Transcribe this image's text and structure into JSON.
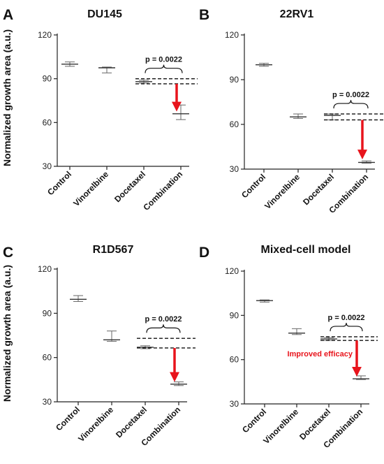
{
  "figure": {
    "ylabel": "Normalized growth area (a.u.)"
  },
  "chart_data": [
    {
      "panel_letter": "A",
      "title": "DU145",
      "type": "scatter",
      "categories": [
        "Control",
        "Vinorelbine",
        "Docetaxel",
        "Combination"
      ],
      "series": [
        {
          "mean": [
            100,
            97.5,
            88,
            66
          ],
          "error_low": [
            98.5,
            94,
            87,
            62
          ],
          "error_high": [
            101.5,
            98,
            89,
            72
          ]
        }
      ],
      "ylim": [
        30,
        120
      ],
      "yticks": [
        30,
        60,
        90,
        120
      ],
      "grid": false,
      "annotation": {
        "text": "p = 0.0022",
        "from": "Docetaxel",
        "to": "Combination",
        "dashed_levels": [
          90,
          86.5
        ]
      },
      "arrow": {
        "category": "Combination",
        "from": 86.5,
        "to": 68,
        "color": "#e8141c"
      },
      "note": ""
    },
    {
      "panel_letter": "B",
      "title": "22RV1",
      "type": "scatter",
      "categories": [
        "Control",
        "Vinorelbine",
        "Docetaxel",
        "Combination"
      ],
      "series": [
        {
          "mean": [
            100,
            65,
            66,
            34.5
          ],
          "error_low": [
            99,
            64,
            63,
            34
          ],
          "error_high": [
            101,
            67,
            67,
            35.5
          ]
        }
      ],
      "ylim": [
        30,
        120
      ],
      "yticks": [
        30,
        60,
        90,
        120
      ],
      "grid": false,
      "annotation": {
        "text": "p = 0.0022",
        "from": "Docetaxel",
        "to": "Combination",
        "dashed_levels": [
          67,
          63
        ]
      },
      "arrow": {
        "category": "Combination",
        "from": 63,
        "to": 37,
        "color": "#e8141c"
      },
      "note": ""
    },
    {
      "panel_letter": "C",
      "title": "R1D567",
      "type": "scatter",
      "categories": [
        "Control",
        "Vinorelbine",
        "Docetaxel",
        "Combination"
      ],
      "series": [
        {
          "mean": [
            99.5,
            72,
            67,
            42
          ],
          "error_low": [
            98,
            71,
            66,
            41
          ],
          "error_high": [
            102,
            78,
            68,
            43.5
          ]
        }
      ],
      "ylim": [
        30,
        120
      ],
      "yticks": [
        30,
        60,
        90,
        120
      ],
      "grid": false,
      "annotation": {
        "text": "p = 0.0022",
        "from": "Docetaxel",
        "to": "Combination",
        "dashed_levels": [
          73,
          66.5
        ]
      },
      "arrow": {
        "category": "Combination",
        "from": 66.5,
        "to": 44,
        "color": "#e8141c"
      },
      "note": ""
    },
    {
      "panel_letter": "D",
      "title": "Mixed-cell model",
      "type": "scatter",
      "categories": [
        "Control",
        "Vinorelbine",
        "Docetaxel",
        "Combination"
      ],
      "series": [
        {
          "mean": [
            100,
            78,
            74,
            47
          ],
          "error_low": [
            99,
            77,
            73,
            46.5
          ],
          "error_high": [
            100.5,
            81,
            75,
            49
          ]
        }
      ],
      "ylim": [
        30,
        120
      ],
      "yticks": [
        30,
        60,
        90,
        120
      ],
      "grid": false,
      "annotation": {
        "text": "p = 0.0022",
        "from": "Docetaxel",
        "to": "Combination",
        "dashed_levels": [
          75.5,
          73
        ]
      },
      "arrow": {
        "category": "Combination",
        "from": 73,
        "to": 49,
        "color": "#e8141c"
      },
      "note": "Improved efficacy"
    }
  ]
}
